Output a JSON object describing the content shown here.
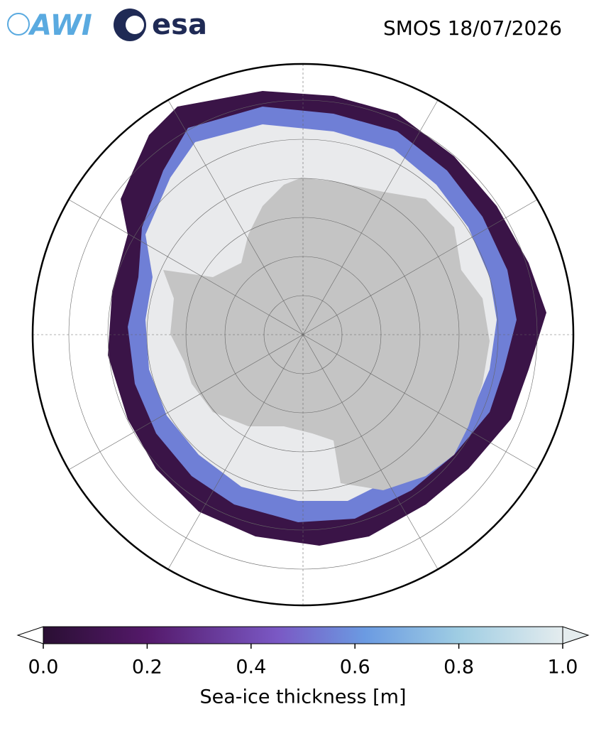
{
  "header": {
    "logos": [
      "AWI",
      "esa"
    ],
    "title": "SMOS 18/07/2026"
  },
  "colorbar": {
    "label": "Sea-ice thickness [m]",
    "lim": [
      0,
      1
    ],
    "ticks": [
      {
        "value": 0,
        "label": "0.0"
      },
      0.2,
      0.4,
      0.6,
      0.8,
      {
        "value": 1,
        "label": "1.0"
      }
    ]
  }
}
